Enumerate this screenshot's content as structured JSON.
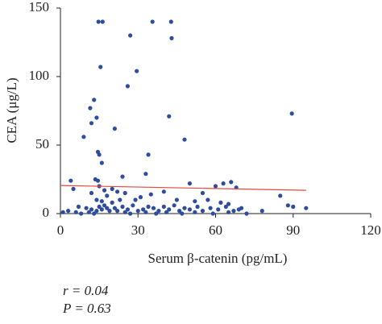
{
  "chart_data": {
    "type": "scatter",
    "xlabel": "Serum β-catenin (pg/mL)",
    "ylabel": "CEA (μg/L)",
    "xlim": [
      0,
      120
    ],
    "xticks": [
      0,
      30,
      60,
      90,
      120
    ],
    "ylim": [
      0,
      150
    ],
    "yticks": [
      0,
      50,
      100,
      150
    ],
    "series": [
      {
        "color": "#2f4da0",
        "x": [
          14.7,
          16.3,
          35.6,
          42.8,
          27,
          43,
          15.5,
          29.5,
          26,
          13,
          11.5,
          14,
          42,
          12,
          21,
          89.5,
          48,
          9,
          14.5,
          15,
          34,
          16,
          33,
          24,
          4,
          13.5,
          14.5,
          50,
          63,
          66,
          60,
          15,
          20,
          17,
          22,
          25,
          12,
          40,
          55,
          85,
          68,
          5,
          35,
          18,
          29,
          31,
          45,
          14,
          16,
          20,
          23,
          52,
          57,
          62,
          65,
          7,
          10,
          12,
          14,
          15,
          16,
          17,
          18,
          19,
          21,
          22,
          24,
          26,
          28,
          30,
          32,
          34,
          36,
          38,
          40,
          42,
          44,
          46,
          48,
          50,
          53,
          55,
          58,
          61,
          64,
          67,
          69,
          70,
          78,
          88,
          90,
          95,
          1,
          3,
          6,
          8,
          11,
          13,
          25,
          27,
          33,
          37,
          41,
          47,
          52,
          59,
          65,
          72
        ],
        "values": [
          140,
          140,
          140,
          140,
          130,
          128,
          107,
          104,
          93,
          83,
          77,
          70,
          71,
          66,
          62,
          73,
          54,
          56,
          45,
          43,
          43,
          37,
          29,
          27,
          24,
          25,
          24,
          22,
          22,
          23,
          20,
          20,
          18,
          17,
          16,
          15,
          15,
          16,
          15,
          13,
          19,
          18,
          14,
          13,
          10,
          12,
          10,
          10,
          9,
          8,
          10,
          9,
          10,
          8,
          7,
          5,
          4,
          3,
          2,
          5,
          3,
          6,
          4,
          2,
          4,
          2,
          5,
          3,
          6,
          2,
          3,
          5,
          4,
          2,
          5,
          3,
          6,
          2,
          4,
          3,
          5,
          2,
          4,
          3,
          5,
          2,
          3,
          4,
          2,
          6,
          5,
          4,
          1,
          2,
          1,
          0,
          1,
          0,
          1,
          0,
          1,
          0,
          1,
          0,
          1,
          0,
          1,
          0
        ]
      }
    ],
    "trend": {
      "x": [
        0,
        95
      ],
      "values": [
        20.5,
        17
      ],
      "color": "#e8473a"
    },
    "annotations": [
      "r = 0.04",
      "P = 0.63"
    ]
  }
}
